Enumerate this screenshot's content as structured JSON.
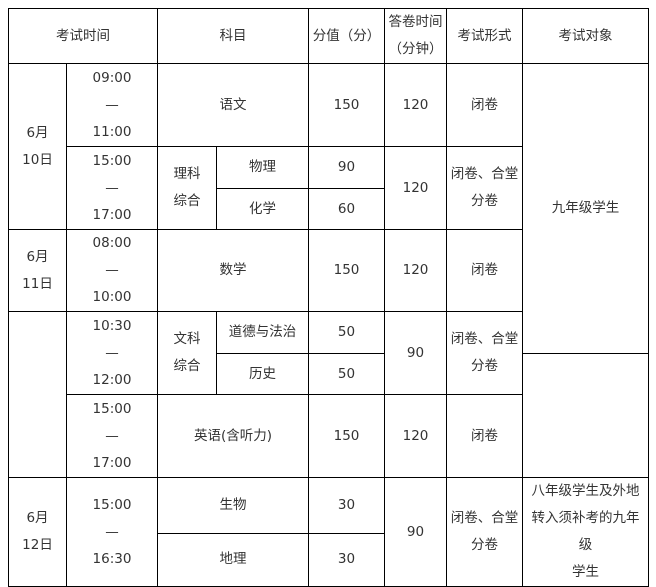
{
  "header": [
    "考试时间",
    "科目",
    "分值（分）",
    "答卷时间（分钟）",
    "考试形式",
    "考试对象"
  ],
  "header_lines": {
    "answer_time": [
      "答卷时间",
      "（分钟）"
    ]
  },
  "dates": {
    "d10": [
      "6月",
      "10日"
    ],
    "d11": [
      "6月",
      "11日"
    ],
    "d12": [
      "6月",
      "12日"
    ]
  },
  "times": {
    "t1": [
      "09:00",
      "—",
      "11:00"
    ],
    "t2": [
      "15:00",
      "—",
      "17:00"
    ],
    "t3": [
      "08:00",
      "—",
      "10:00"
    ],
    "t4": [
      "10:30",
      "—",
      "12:00"
    ],
    "t5": [
      "15:00",
      "—",
      "17:00"
    ],
    "t6": [
      "15:00",
      "—",
      "16:30"
    ]
  },
  "subjects": {
    "chinese": "语文",
    "science_group": [
      "理科",
      "综合"
    ],
    "physics": "物理",
    "chemistry": "化学",
    "math": "数学",
    "arts_group": [
      "文科",
      "综合"
    ],
    "morality": "道德与法治",
    "history": "历史",
    "english": "英语(含听力)",
    "biology": "生物",
    "geography": "地理"
  },
  "scores": {
    "chinese": "150",
    "physics": "90",
    "chemistry": "60",
    "math": "150",
    "morality": "50",
    "history": "50",
    "english": "150",
    "biology": "30",
    "geography": "30"
  },
  "durations": {
    "chinese": "120",
    "science": "120",
    "math": "120",
    "arts": "90",
    "english": "120",
    "bio_geo": "90"
  },
  "formats": {
    "closed": "闭卷",
    "combined": [
      "闭卷、合堂",
      "分卷"
    ]
  },
  "targets": {
    "grade9": "九年级学生",
    "grade8": [
      "八年级学生及外地",
      "转入须补考的九年级",
      "学生"
    ]
  }
}
